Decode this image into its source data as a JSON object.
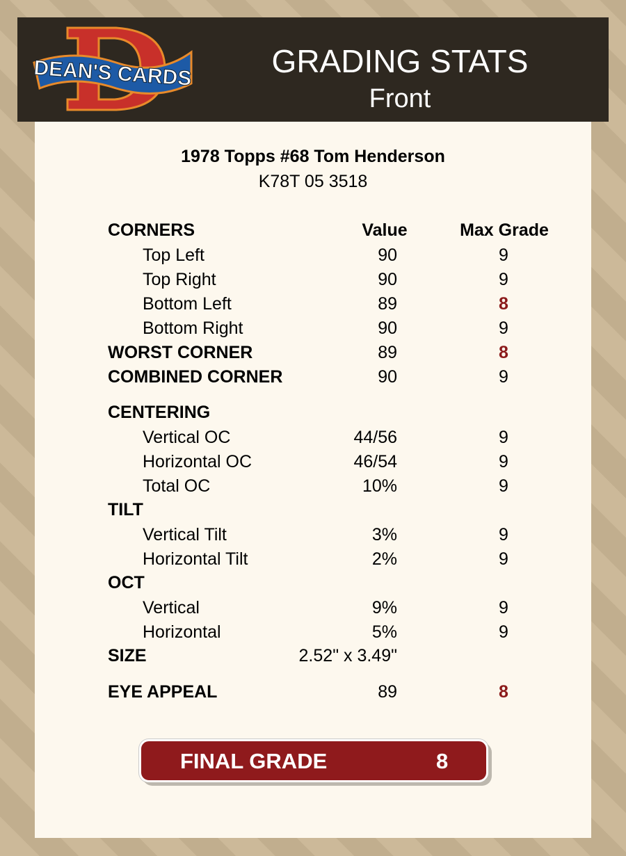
{
  "header": {
    "logo_text": "DEAN'S CARDS",
    "title": "GRADING STATS",
    "subtitle": "Front"
  },
  "card": {
    "name": "1978 Topps #68 Tom Henderson",
    "id": "K78T 05 3518"
  },
  "columns": {
    "value": "Value",
    "max": "Max Grade"
  },
  "rows": [
    {
      "label": "CORNERS",
      "type": "header"
    },
    {
      "label": "Top Left",
      "type": "sub",
      "value": "90",
      "max": "9"
    },
    {
      "label": "Top Right",
      "type": "sub",
      "value": "90",
      "max": "9"
    },
    {
      "label": "Bottom Left",
      "type": "sub",
      "value": "89",
      "max": "8",
      "low": true
    },
    {
      "label": "Bottom Right",
      "type": "sub",
      "value": "90",
      "max": "9"
    },
    {
      "label": "WORST CORNER",
      "type": "sec",
      "value": "89",
      "max": "8",
      "low": true
    },
    {
      "label": "COMBINED CORNER",
      "type": "sec",
      "value": "90",
      "max": "9"
    },
    {
      "label": "CENTERING",
      "type": "sec"
    },
    {
      "label": "Vertical OC",
      "type": "sub",
      "value": "44/56",
      "max": "9"
    },
    {
      "label": "Horizontal OC",
      "type": "sub",
      "value": "46/54",
      "max": "9"
    },
    {
      "label": "Total OC",
      "type": "sub",
      "value": "10%",
      "max": "9"
    },
    {
      "label": "TILT",
      "type": "sec"
    },
    {
      "label": "Vertical Tilt",
      "type": "sub",
      "value": "3%",
      "max": "9"
    },
    {
      "label": "Horizontal Tilt",
      "type": "sub",
      "value": "2%",
      "max": "9"
    },
    {
      "label": "OCT",
      "type": "sec"
    },
    {
      "label": "Vertical",
      "type": "sub",
      "value": "9%",
      "max": "9"
    },
    {
      "label": "Horizontal",
      "type": "sub",
      "value": "5%",
      "max": "9"
    },
    {
      "label": "SIZE",
      "type": "sec",
      "value": "2.52\" x 3.49\""
    },
    {
      "label": "EYE APPEAL",
      "type": "sec",
      "value": "89",
      "max": "8",
      "low": true
    }
  ],
  "final": {
    "label": "FINAL GRADE",
    "value": "8"
  },
  "colors": {
    "header_bg": "#2e2820",
    "panel_bg": "#fdf8ee",
    "accent": "#8f1a1c",
    "low_grade": "#8b1a1a"
  }
}
